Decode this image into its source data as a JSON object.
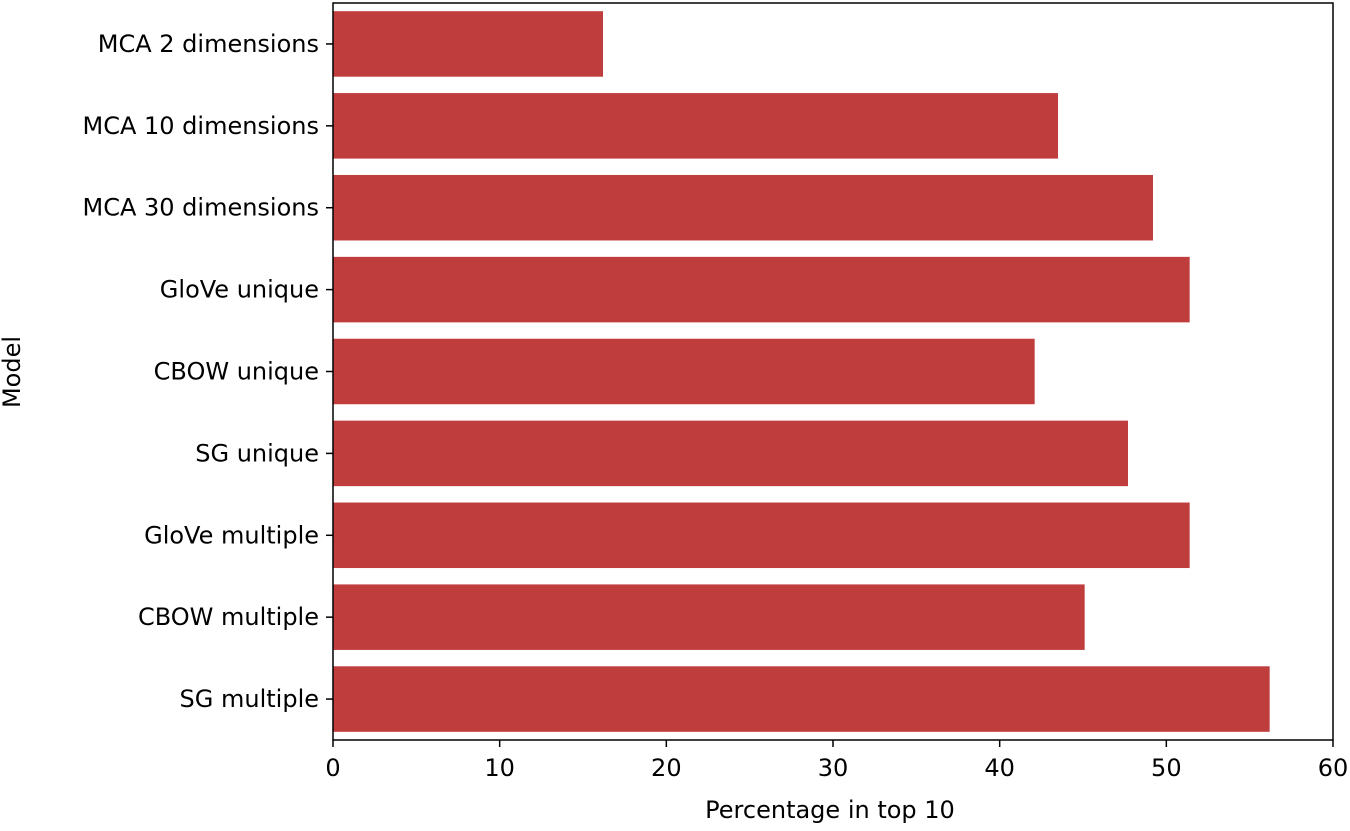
{
  "chart_data": {
    "type": "bar",
    "orientation": "horizontal",
    "xlabel": "Percentage in top 10",
    "ylabel": "Model",
    "categories": [
      "MCA 2 dimensions",
      "MCA 10 dimensions",
      "MCA 30 dimensions",
      "GloVe unique",
      "CBOW unique",
      "SG unique",
      "GloVe multiple",
      "CBOW multiple",
      "SG multiple"
    ],
    "values": [
      16.2,
      43.5,
      49.2,
      51.4,
      42.1,
      47.7,
      51.4,
      45.1,
      56.2
    ],
    "color": "#c03d3e",
    "xlim": [
      0,
      60
    ],
    "xticks": [
      0,
      10,
      20,
      30,
      40,
      50,
      60
    ],
    "grid": false
  }
}
